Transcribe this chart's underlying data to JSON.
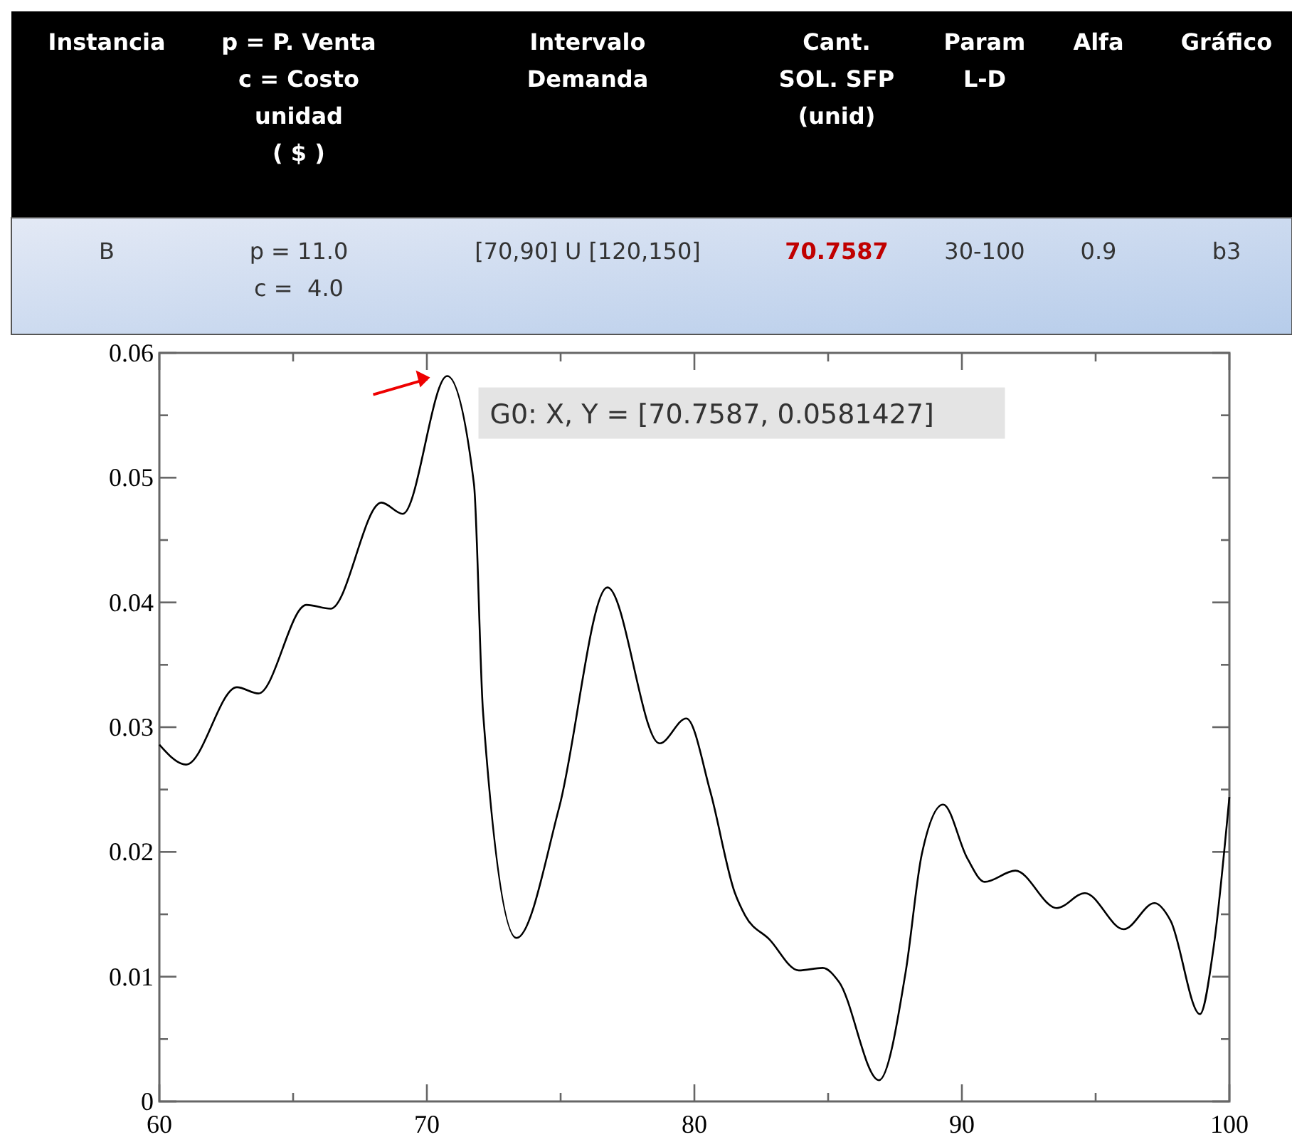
{
  "chart_data": [
    {
      "type": "other",
      "annotations": [
        "Instancia",
        "p = P. Venta\nc = Costo\nunidad\n( $ )",
        "Intervalo\nDemanda",
        "Cant.\nSOL. SFP\n(unid)",
        "Param\nL-D",
        "Alfa",
        "Gráfico",
        "B",
        "p = 11.0\nc =  4.0",
        "[70,90] U [120,150]",
        "70.7587",
        "30-100",
        "0.9",
        "b3"
      ]
    },
    {
      "type": "line",
      "series": [
        {
          "color": "#000000",
          "x": [
            60,
            61,
            62.9,
            63.7,
            65.5,
            66.4,
            68.3,
            69.1,
            70.7587,
            71.76,
            72.1,
            73.35,
            74.95,
            76.75,
            78.7,
            79.7,
            80.6,
            81.5,
            81.9,
            82.8,
            83.9,
            84.8,
            85.4,
            86.9,
            87.9,
            88.5,
            89.3,
            90.2,
            90.85,
            92.0,
            93.55,
            94.6,
            96.05,
            97.2,
            97.8,
            98.9,
            99.4,
            100
          ],
          "values": [
            0.0286,
            0.027,
            0.0332,
            0.0327,
            0.0398,
            0.0395,
            0.048,
            0.0471,
            0.0581427,
            0.0495,
            0.0312,
            0.0131,
            0.0236,
            0.0412,
            0.0287,
            0.0307,
            0.0248,
            0.0168,
            0.0149,
            0.013,
            0.0105,
            0.0107,
            0.0096,
            0.0017,
            0.0104,
            0.0198,
            0.0238,
            0.0195,
            0.0176,
            0.0185,
            0.0155,
            0.0167,
            0.0138,
            0.0159,
            0.0145,
            0.007,
            0.0122,
            0.0244
          ]
        }
      ],
      "xlim": [
        60,
        100
      ],
      "ylim": [
        0,
        0.06
      ],
      "xticks": [
        60,
        {
          "value": 65,
          "label": null
        },
        70,
        {
          "value": 75,
          "label": null
        },
        80,
        {
          "value": 85,
          "label": null
        },
        90,
        {
          "value": 95,
          "label": null
        },
        100
      ],
      "yticks": [
        0,
        {
          "value": 0.005,
          "label": null
        },
        0.01,
        {
          "value": 0.015,
          "label": null
        },
        0.02,
        {
          "value": 0.025,
          "label": null
        },
        0.03,
        {
          "value": 0.035,
          "label": null
        },
        0.04,
        {
          "value": 0.045,
          "label": null
        },
        0.05,
        {
          "value": 0.055,
          "label": null
        },
        0.06
      ],
      "marker": "none",
      "line_style": "solid",
      "annotations": [
        {
          "text": "G0: X, Y = [70.7587, 0.0581427]",
          "x": 70.7587,
          "y": 0.0581427
        }
      ]
    }
  ]
}
